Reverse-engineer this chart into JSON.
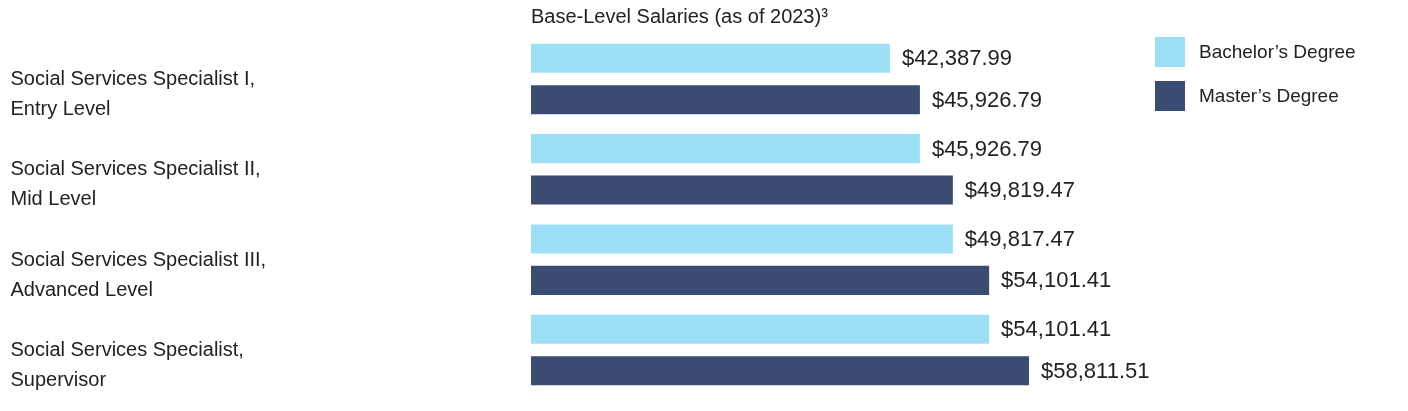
{
  "chart_data": {
    "type": "bar",
    "orientation": "horizontal",
    "title": "Base-Level Salaries (as of 2023)³",
    "categories": [
      "Social Services Specialist I, Entry Level",
      "Social Services Specialist II, Mid Level",
      "Social Services Specialist III, Advanced Level",
      "Social Services Specialist, Supervisor"
    ],
    "series": [
      {
        "name": "Bachelor’s Degree",
        "color": "#9ddff6",
        "values": [
          42387.99,
          45926.79,
          49817.47,
          54101.41
        ],
        "value_labels": [
          "$42,387.99",
          "$45,926.79",
          "$49,817.47",
          "$54,101.41"
        ]
      },
      {
        "name": "Master’s Degree",
        "color": "#3a4c72",
        "values": [
          45926.79,
          49819.47,
          54101.41,
          58811.51
        ],
        "value_labels": [
          "$45,926.79",
          "$49,819.47",
          "$54,101.41",
          "$58,811.51"
        ]
      }
    ],
    "legend": "top right"
  }
}
